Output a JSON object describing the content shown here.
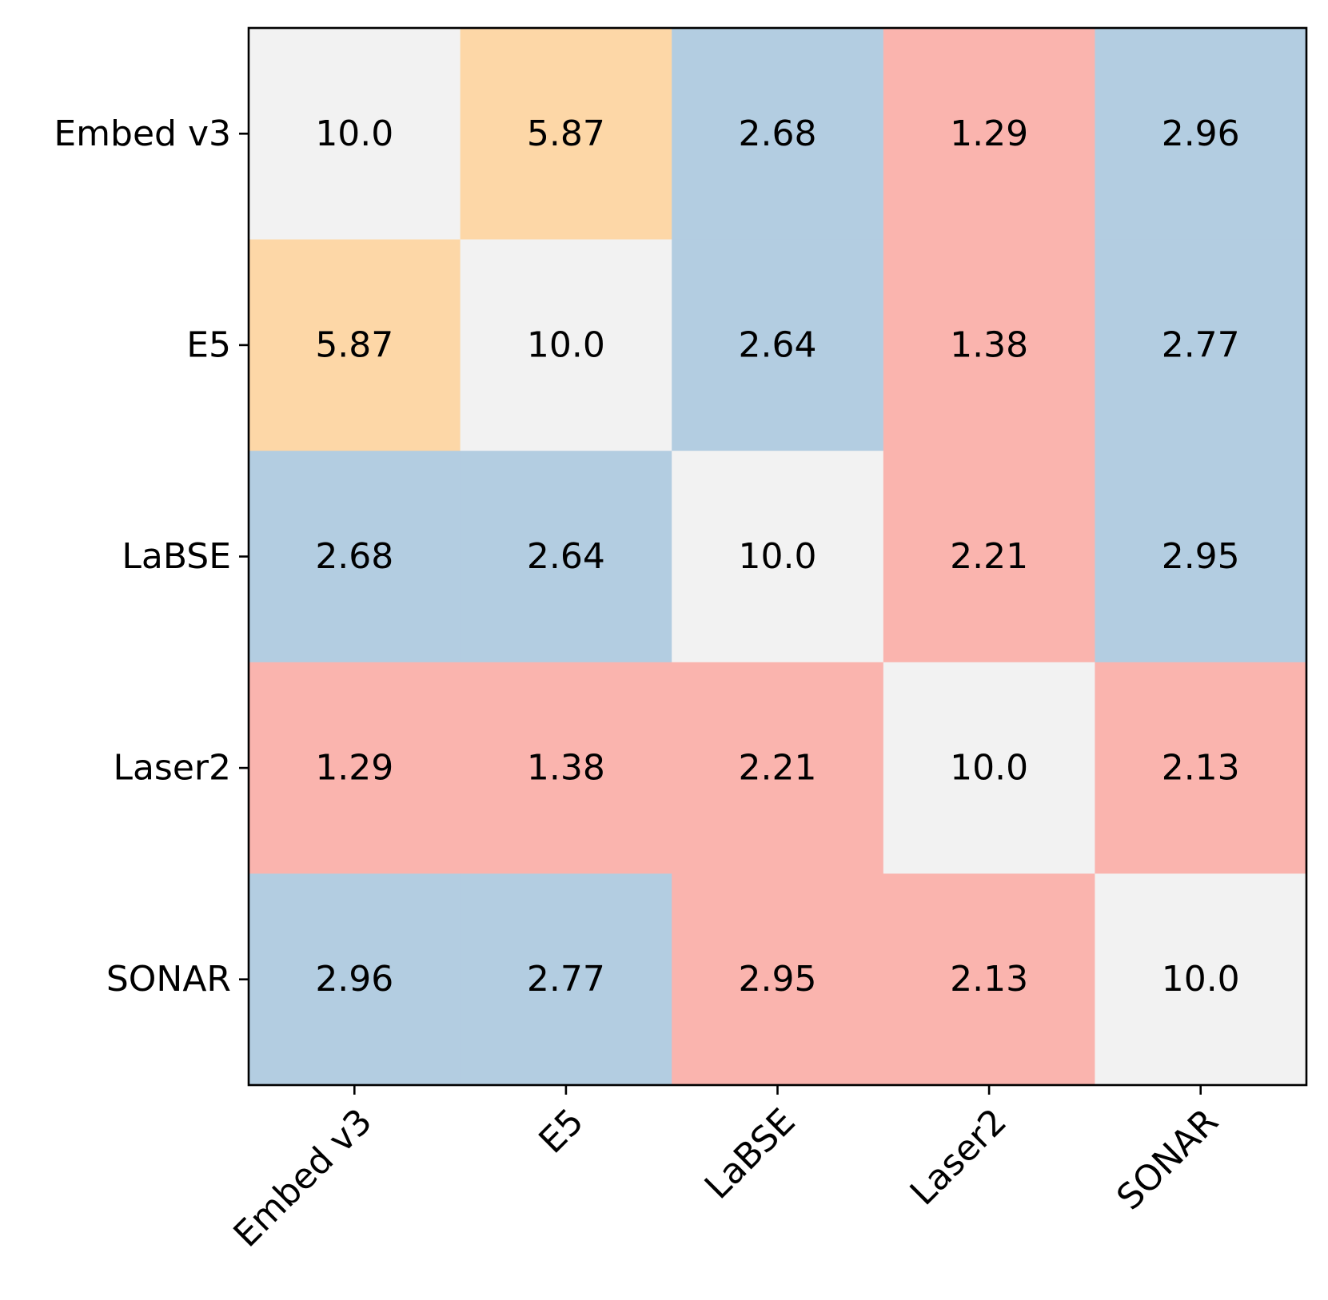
{
  "chart_data": {
    "type": "heatmap",
    "title": "",
    "xlabel": "",
    "ylabel": "",
    "x_labels": [
      "Embed v3",
      "E5",
      "LaBSE",
      "Laser2",
      "SONAR"
    ],
    "y_labels": [
      "Embed v3",
      "E5",
      "LaBSE",
      "Laser2",
      "SONAR"
    ],
    "values": [
      [
        10.0,
        5.87,
        2.68,
        1.29,
        2.96
      ],
      [
        5.87,
        10.0,
        2.64,
        1.38,
        2.77
      ],
      [
        2.68,
        2.64,
        10.0,
        2.21,
        2.95
      ],
      [
        1.29,
        1.38,
        2.21,
        10.0,
        2.13
      ],
      [
        2.96,
        2.77,
        2.95,
        2.13,
        10.0
      ]
    ],
    "cell_labels": [
      [
        "10.0",
        "5.87",
        "2.68",
        "1.29",
        "2.96"
      ],
      [
        "5.87",
        "10.0",
        "2.64",
        "1.38",
        "2.77"
      ],
      [
        "2.68",
        "2.64",
        "10.0",
        "2.21",
        "2.95"
      ],
      [
        "1.29",
        "1.38",
        "2.21",
        "10.0",
        "2.13"
      ],
      [
        "2.96",
        "2.77",
        "2.95",
        "2.13",
        "10.0"
      ]
    ],
    "cell_colors": [
      [
        "#f2f2f2",
        "#fdd7a7",
        "#b3cde1",
        "#fab4ae",
        "#b3cde1"
      ],
      [
        "#fdd7a7",
        "#f2f2f2",
        "#b3cde1",
        "#fab4ae",
        "#b3cde1"
      ],
      [
        "#b3cde1",
        "#b3cde1",
        "#f2f2f2",
        "#fab4ae",
        "#b3cde1"
      ],
      [
        "#fab4ae",
        "#fab4ae",
        "#fab4ae",
        "#f2f2f2",
        "#fab4ae"
      ],
      [
        "#b3cde1",
        "#b3cde1",
        "#fab4ae",
        "#fab4ae",
        "#f2f2f2"
      ]
    ],
    "grid": false,
    "legend": "none",
    "colorbar": false
  }
}
